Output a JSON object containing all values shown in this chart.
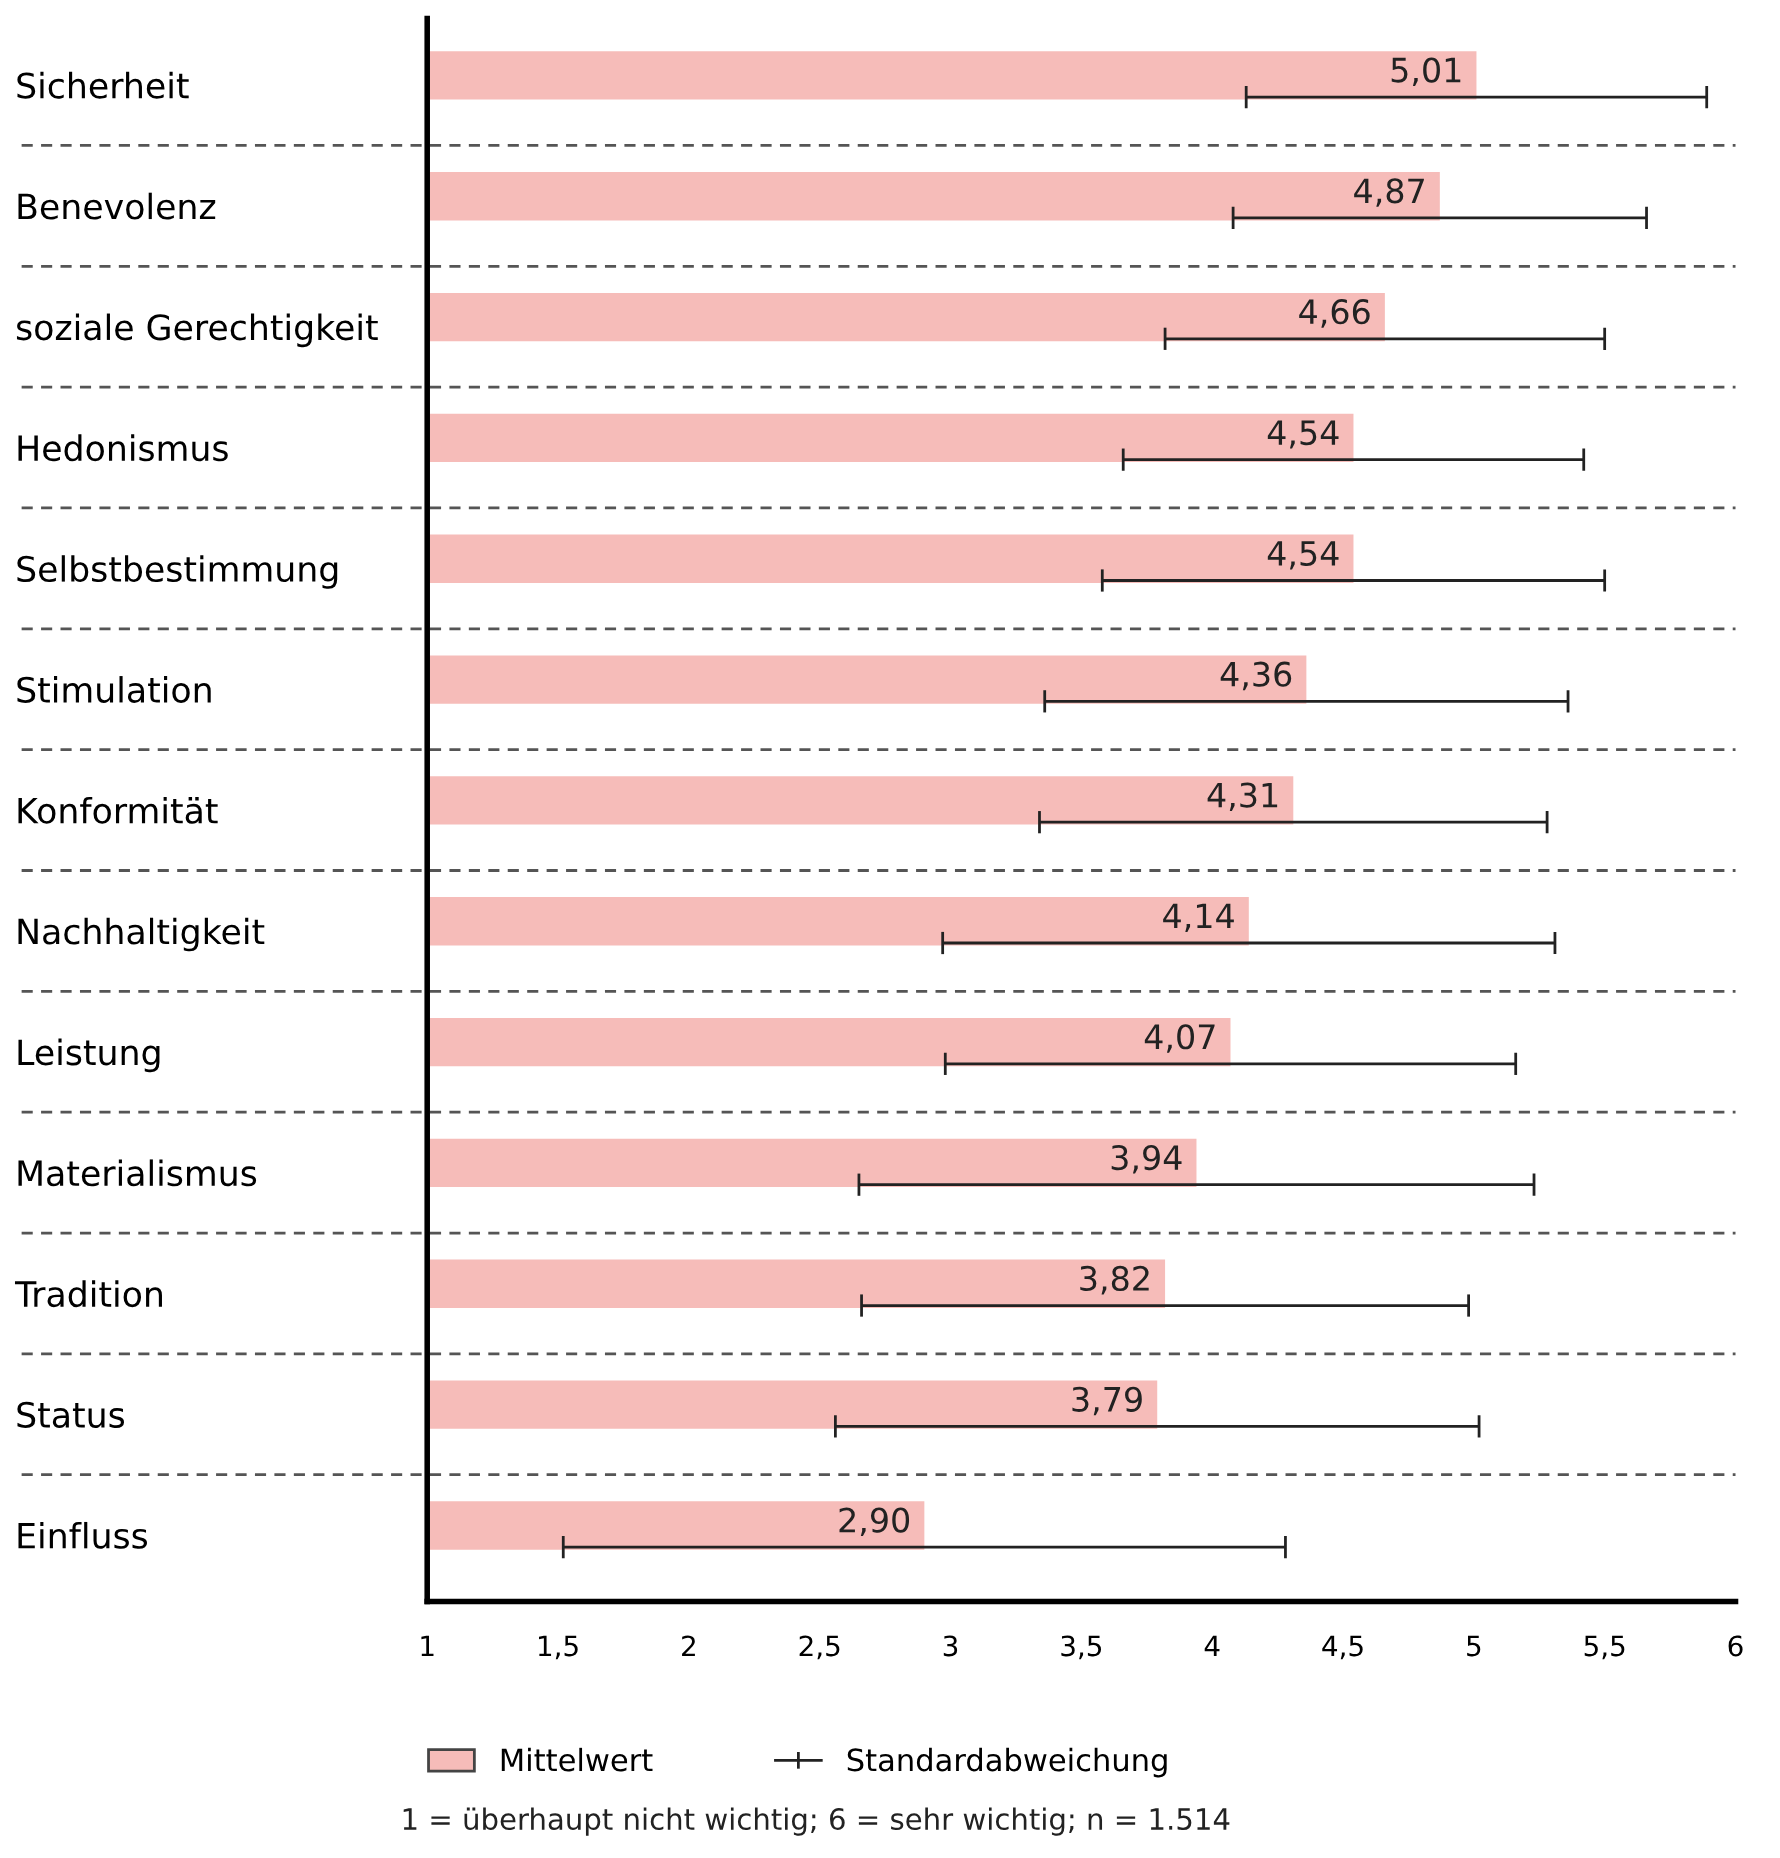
{
  "chart_data": {
    "type": "bar",
    "orientation": "horizontal",
    "categories": [
      "Sicherheit",
      "Benevolenz",
      "soziale Gerechtigkeit",
      "Hedonismus",
      "Selbstbestimmung",
      "Stimulation",
      "Konformität",
      "Nachhaltigkeit",
      "Leistung",
      "Materialismus",
      "Tradition",
      "Status",
      "Einfluss"
    ],
    "series": [
      {
        "name": "Mittelwert",
        "color": "#f6bcb9",
        "values": [
          5.01,
          4.87,
          4.66,
          4.54,
          4.54,
          4.36,
          4.31,
          4.14,
          4.07,
          3.94,
          3.82,
          3.79,
          2.9
        ],
        "value_labels": [
          "5,01",
          "4,87",
          "4,66",
          "4,54",
          "4,54",
          "4,36",
          "4,31",
          "4,14",
          "4,07",
          "3,94",
          "3,82",
          "3,79",
          "2,90"
        ],
        "errors": [
          0.88,
          0.79,
          0.84,
          0.88,
          0.96,
          1.0,
          0.97,
          1.17,
          1.09,
          1.29,
          1.16,
          1.23,
          1.38
        ]
      }
    ],
    "xlim": [
      1,
      6
    ],
    "xticks": [
      1,
      {
        "value": 1.5,
        "label": "1,5"
      },
      2,
      {
        "value": 2.5,
        "label": "2,5"
      },
      3,
      {
        "value": 3.5,
        "label": "3,5"
      },
      4,
      {
        "value": 4.5,
        "label": "4,5"
      },
      5,
      {
        "value": 5.5,
        "label": "5,5"
      },
      6
    ],
    "grid": "y",
    "legend": "bottom",
    "annotations": [
      "Standardabweichung",
      "1 = überhaupt nicht wichtig; 6 = sehr wichtig; n = 1.514"
    ]
  }
}
